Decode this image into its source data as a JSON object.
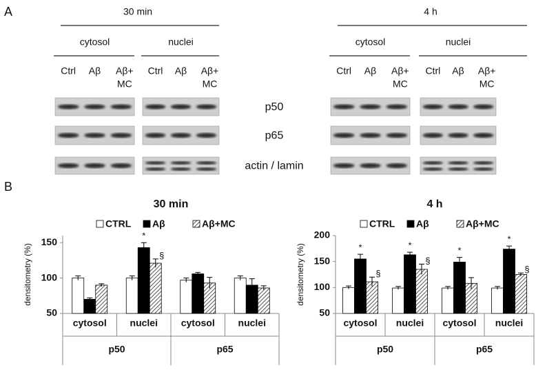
{
  "panel_a": {
    "label": "A",
    "times": [
      {
        "title": "30 min",
        "fractions": [
          {
            "name": "cytosol",
            "lanes": [
              [
                "Ctrl"
              ],
              [
                "Aβ"
              ],
              [
                "Aβ+",
                "MC"
              ]
            ]
          },
          {
            "name": "nuclei",
            "lanes": [
              [
                "Ctrl"
              ],
              [
                "Aβ"
              ],
              [
                "Aβ+",
                "MC"
              ]
            ]
          }
        ]
      },
      {
        "title": "4 h",
        "fractions": [
          {
            "name": "cytosol",
            "lanes": [
              [
                "Ctrl"
              ],
              [
                "Aβ"
              ],
              [
                "Aβ+",
                "MC"
              ]
            ]
          },
          {
            "name": "nuclei",
            "lanes": [
              [
                "Ctrl"
              ],
              [
                "Aβ"
              ],
              [
                "Aβ+",
                "MC"
              ]
            ]
          }
        ]
      }
    ],
    "proteins": [
      "p50",
      "p65",
      "actin / lamin"
    ]
  },
  "panel_b": {
    "label": "B"
  },
  "chart_data": [
    {
      "type": "bar",
      "title": "30 min",
      "ylabel": "densitometry (%)",
      "categories": [
        "cytosol",
        "nuclei",
        "cytosol",
        "nuclei"
      ],
      "groups": [
        "p50",
        "p65"
      ],
      "ylim": [
        50,
        160
      ],
      "yticks": [
        50,
        100,
        150
      ],
      "series": [
        {
          "name": "CTRL",
          "color": "#ffffff",
          "values": [
            100,
            100,
            97,
            100
          ],
          "errors": [
            3,
            3,
            3,
            3
          ],
          "annotations": [
            null,
            null,
            null,
            null
          ]
        },
        {
          "name": "Aβ",
          "color": "#000000",
          "values": [
            70,
            143,
            106,
            90
          ],
          "errors": [
            2,
            7,
            2,
            9
          ],
          "annotations": [
            null,
            "*",
            null,
            null
          ]
        },
        {
          "name": "Aβ+MC",
          "color": "#555555",
          "pattern": "hatch",
          "values": [
            90,
            121,
            93,
            86
          ],
          "errors": [
            2,
            6,
            8,
            3
          ],
          "annotations": [
            null,
            "§",
            null,
            null
          ]
        }
      ]
    },
    {
      "type": "bar",
      "title": "4 h",
      "ylabel": "densitometry (%)",
      "categories": [
        "cytosol",
        "nuclei",
        "cytosol",
        "nuclei"
      ],
      "groups": [
        "p50",
        "p65"
      ],
      "ylim": [
        50,
        200
      ],
      "yticks": [
        50,
        100,
        150,
        200
      ],
      "series": [
        {
          "name": "CTRL",
          "color": "#ffffff",
          "values": [
            100,
            99,
            99,
            99
          ],
          "errors": [
            3,
            3,
            3,
            3
          ],
          "annotations": [
            null,
            null,
            null,
            null
          ]
        },
        {
          "name": "Aβ",
          "color": "#000000",
          "values": [
            155,
            163,
            149,
            174
          ],
          "errors": [
            9,
            5,
            9,
            6
          ],
          "annotations": [
            "*",
            "*",
            "*",
            "*"
          ]
        },
        {
          "name": "Aβ+MC",
          "color": "#555555",
          "pattern": "hatch",
          "values": [
            111,
            135,
            108,
            125
          ],
          "errors": [
            9,
            10,
            11,
            3
          ],
          "annotations": [
            "§",
            "§",
            null,
            "§"
          ]
        }
      ]
    }
  ]
}
